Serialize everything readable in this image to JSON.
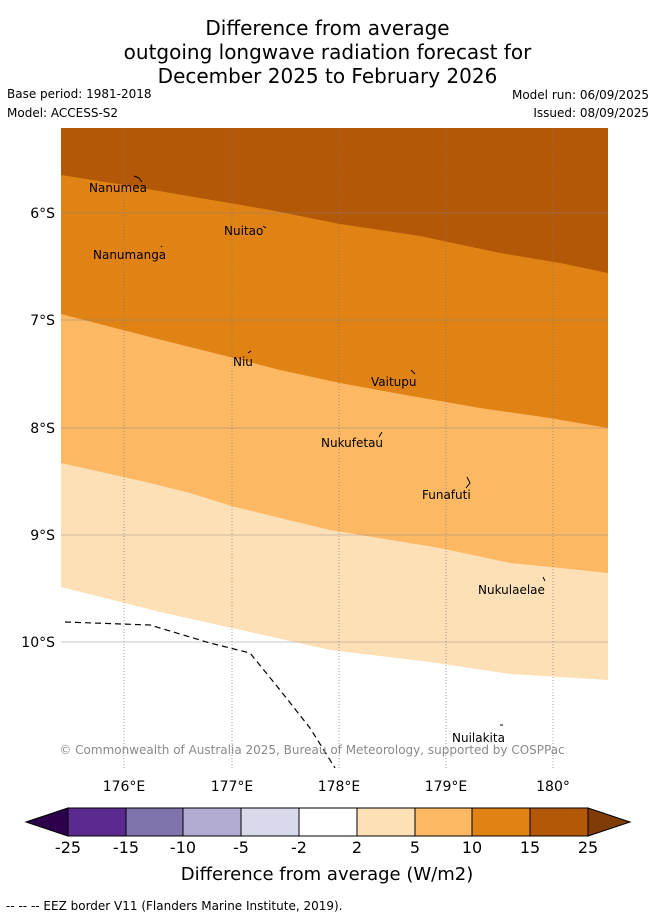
{
  "title_lines": [
    "Difference from average",
    "outgoing longwave radiation forecast for",
    "December 2025 to February 2026"
  ],
  "meta": {
    "base_period": "Base period: 1981-2018",
    "model": "Model: ACCESS-S2",
    "model_run": "Model run: 06/09/2025",
    "issued": "Issued: 08/09/2025"
  },
  "map": {
    "lat_labels": [
      "6°S",
      "7°S",
      "8°S",
      "9°S",
      "10°S"
    ],
    "lon_labels": [
      "176°E",
      "177°E",
      "178°E",
      "179°E",
      "180°"
    ],
    "places": [
      "Nanumea",
      "Nuitao",
      "Nanumanga",
      "Niu",
      "Vaitupu",
      "Nukufetau",
      "Funafuti",
      "Nukulaelae",
      "Nuilakita"
    ],
    "copyright": "© Commonwealth of Australia 2025, Bureau of Meteorology, supported by COSPPac",
    "colors": {
      "band_25": "#b35806",
      "band_15": "#e08214",
      "band_10": "#fdb863",
      "band_5": "#fee0b6",
      "band_2": "#ffffff",
      "eez_border": "#000000"
    }
  },
  "colorbar": {
    "ticks": [
      "-25",
      "-15",
      "-10",
      "-5",
      "-2",
      "2",
      "5",
      "10",
      "15",
      "25"
    ],
    "label": "Difference from average (W/m2)",
    "colors": [
      "#5a2a8f",
      "#8073ac",
      "#b2abd2",
      "#d8daeb",
      "#ffffff",
      "#fee0b6",
      "#fdb863",
      "#e08214",
      "#b35806"
    ],
    "under_color": "#2d004b",
    "over_color": "#7f3b08"
  },
  "footer": "-- -- -- EEZ border V11 (Flanders Marine Institute, 2019)."
}
